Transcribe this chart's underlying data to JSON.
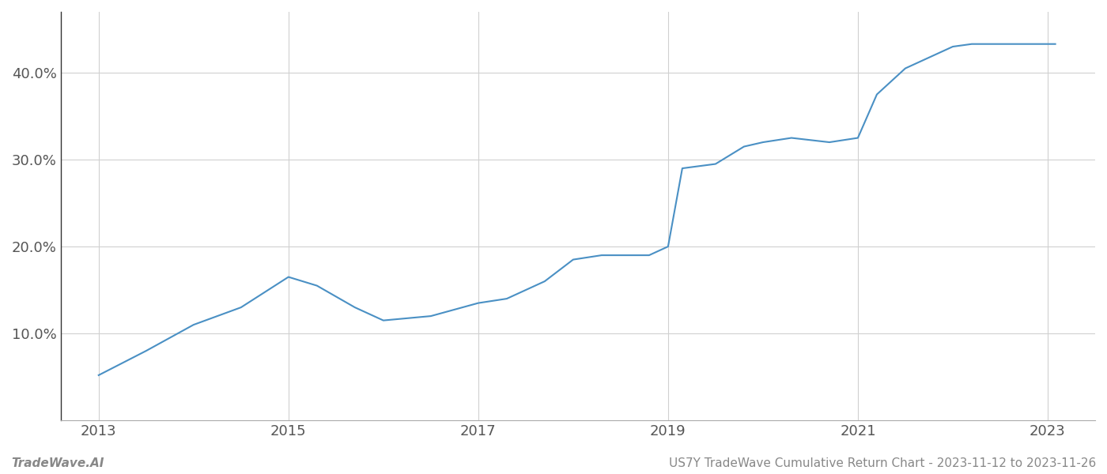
{
  "x_years": [
    2013.0,
    2013.5,
    2014.0,
    2014.5,
    2015.0,
    2015.3,
    2015.7,
    2016.0,
    2016.5,
    2017.0,
    2017.3,
    2017.7,
    2018.0,
    2018.3,
    2018.8,
    2019.0,
    2019.15,
    2019.5,
    2019.8,
    2020.0,
    2020.3,
    2020.7,
    2021.0,
    2021.2,
    2021.5,
    2021.8,
    2022.0,
    2022.2,
    2022.5,
    2022.8,
    2023.0,
    2023.08
  ],
  "y_values": [
    5.2,
    8.0,
    11.0,
    13.0,
    16.5,
    15.5,
    13.0,
    11.5,
    12.0,
    13.5,
    14.0,
    16.0,
    18.5,
    19.0,
    19.0,
    20.0,
    29.0,
    29.5,
    31.5,
    32.0,
    32.5,
    32.0,
    32.5,
    37.5,
    40.5,
    42.0,
    43.0,
    43.3,
    43.3,
    43.3,
    43.3,
    43.3
  ],
  "xlim": [
    2012.6,
    2023.5
  ],
  "ylim": [
    0,
    47
  ],
  "yticks": [
    10.0,
    20.0,
    30.0,
    40.0
  ],
  "ytick_labels": [
    "10.0%",
    "20.0%",
    "30.0%",
    "40.0%"
  ],
  "xticks": [
    2013,
    2015,
    2017,
    2019,
    2021,
    2023
  ],
  "line_color": "#4a90c4",
  "line_width": 1.5,
  "grid_color": "#d0d0d0",
  "background_color": "#ffffff",
  "footer_left": "TradeWave.AI",
  "footer_right": "US7Y TradeWave Cumulative Return Chart - 2023-11-12 to 2023-11-26",
  "footer_color": "#888888",
  "footer_fontsize": 11
}
